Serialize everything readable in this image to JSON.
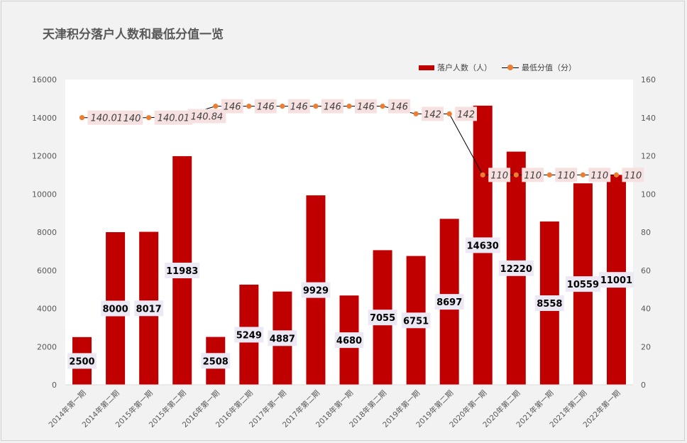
{
  "chart_data": {
    "type": "bar",
    "title": "天津积分落户人数和最低分值一览",
    "categories": [
      "2014年第一期",
      "2014年第二期",
      "2015年第一期",
      "2015年第二期",
      "2016年第一期",
      "2016年第二期",
      "2017年第一期",
      "2017年第二期",
      "2018年第一期",
      "2018年第二期",
      "2019年第一期",
      "2019年第二期",
      "2020年第一期",
      "2020年第二期",
      "2021年第一期",
      "2021年第二期",
      "2022年第一期"
    ],
    "series": [
      {
        "name": "落户人数（人）",
        "type": "bar",
        "axis": "left",
        "color": "#c00000",
        "values": [
          2500,
          8000,
          8017,
          11983,
          2508,
          5249,
          4887,
          9929,
          4680,
          7055,
          6751,
          8697,
          14630,
          12220,
          8558,
          10559,
          11001
        ],
        "labels": [
          "2500",
          "8000",
          "8017",
          "11983",
          "2508",
          "5249",
          "4887",
          "9929",
          "4680",
          "7055",
          "6751",
          "8697",
          "14630",
          "12220",
          "8558",
          "10559",
          "11001"
        ]
      },
      {
        "name": "最低分值（分）",
        "type": "line",
        "axis": "right",
        "color": "#ed7d31",
        "values": [
          140.01,
          140,
          140.01,
          140.84,
          146,
          146,
          146,
          146,
          146,
          146,
          142,
          142,
          110,
          110,
          110,
          110,
          110
        ],
        "labels": [
          "140.01",
          "140",
          "140.01",
          "140.84",
          "146",
          "146",
          "146",
          "146",
          "146",
          "146",
          "142",
          "142",
          "110",
          "110",
          "110",
          "110",
          "110"
        ]
      }
    ],
    "y_left": {
      "min": 0,
      "max": 16000,
      "step": 2000
    },
    "y_right": {
      "min": 0,
      "max": 160,
      "step": 20
    },
    "legend": "top-right",
    "grid": false
  }
}
